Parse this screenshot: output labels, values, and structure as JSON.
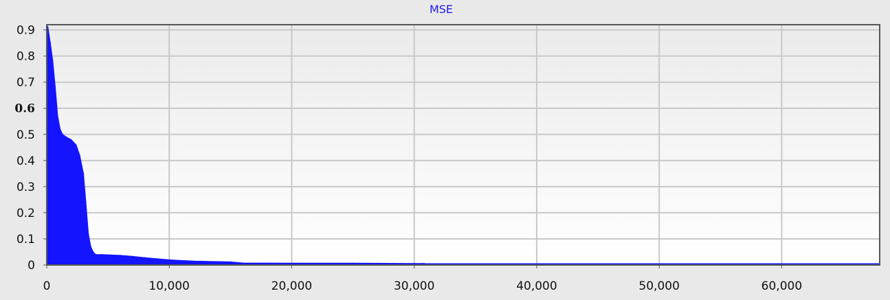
{
  "chart_data": {
    "type": "area",
    "title": "MSE",
    "xlabel": "",
    "ylabel": "",
    "xlim": [
      0,
      68000
    ],
    "ylim": [
      0,
      0.92
    ],
    "x_ticks": [
      {
        "value": 0,
        "label": "0"
      },
      {
        "value": 10000,
        "label": "10,000"
      },
      {
        "value": 20000,
        "label": "20,000"
      },
      {
        "value": 30000,
        "label": "30,000"
      },
      {
        "value": 40000,
        "label": "40,000"
      },
      {
        "value": 50000,
        "label": "50,000"
      },
      {
        "value": 60000,
        "label": "60,000"
      }
    ],
    "y_ticks": [
      {
        "value": 0,
        "label": "0"
      },
      {
        "value": 0.1,
        "label": "0.1"
      },
      {
        "value": 0.2,
        "label": "0.2"
      },
      {
        "value": 0.3,
        "label": "0.3"
      },
      {
        "value": 0.4,
        "label": "0.4"
      },
      {
        "value": 0.5,
        "label": "0.5"
      },
      {
        "value": 0.6,
        "label": "0.6",
        "bold": true
      },
      {
        "value": 0.7,
        "label": "0.7"
      },
      {
        "value": 0.8,
        "label": "0.8"
      },
      {
        "value": 0.9,
        "label": "0.9"
      }
    ],
    "grid": true,
    "series": [
      {
        "color": "#1414ff",
        "x": [
          0,
          100,
          300,
          500,
          700,
          900,
          1100,
          1300,
          1600,
          2000,
          2400,
          2700,
          3000,
          3200,
          3400,
          3600,
          3800,
          4000,
          4500,
          6000,
          7000,
          8000,
          10000,
          12000,
          15000,
          16000,
          20000,
          25000,
          30000,
          30800,
          31000,
          40000,
          50000,
          60000,
          68000
        ],
        "y": [
          0.92,
          0.91,
          0.85,
          0.78,
          0.68,
          0.57,
          0.52,
          0.5,
          0.49,
          0.48,
          0.46,
          0.42,
          0.35,
          0.24,
          0.12,
          0.07,
          0.05,
          0.04,
          0.04,
          0.037,
          0.033,
          0.028,
          0.02,
          0.015,
          0.012,
          0.008,
          0.007,
          0.007,
          0.006,
          0.006,
          0.004,
          0.004,
          0.003,
          0.003,
          0.003
        ]
      }
    ]
  },
  "colors": {
    "background": "#e9e9e9",
    "series": "#1414ff",
    "grid": "#c8c8c8",
    "plot_top": "#ebebeb",
    "plot_bottom": "#ffffff"
  }
}
